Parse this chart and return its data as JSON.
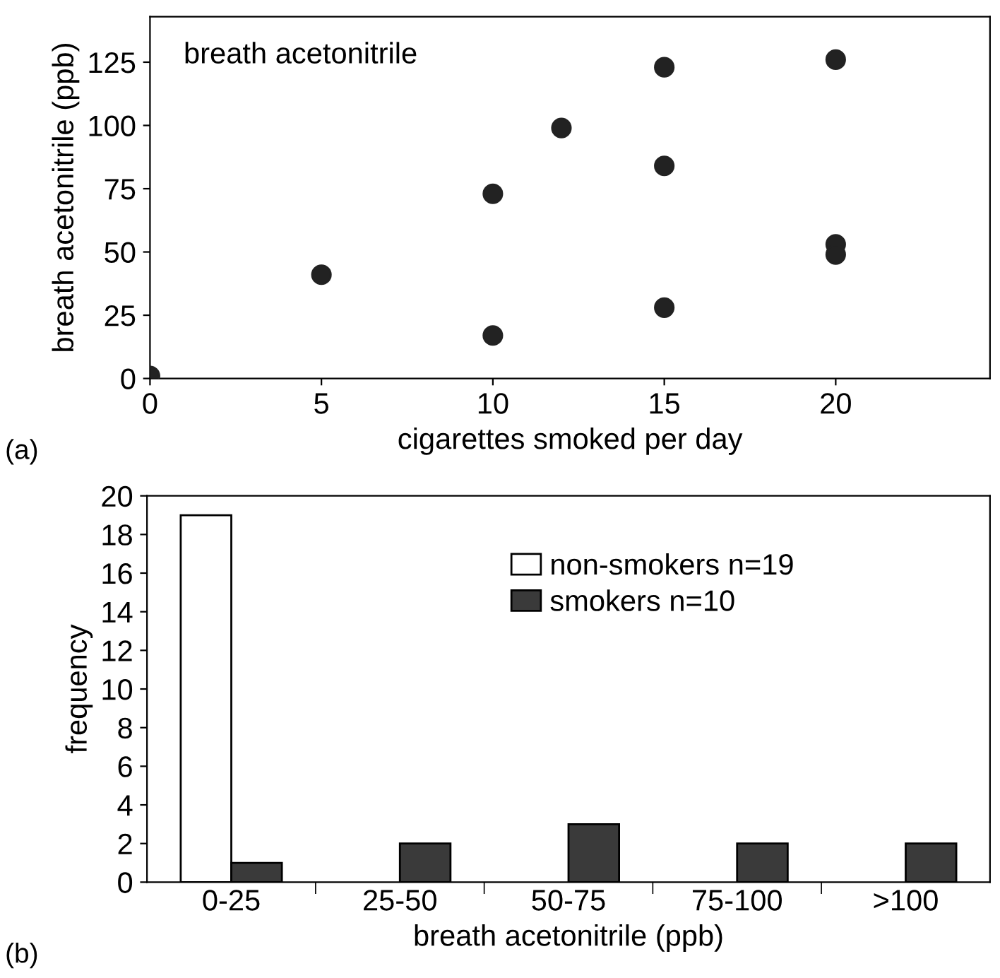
{
  "chart_data": [
    {
      "type": "scatter",
      "xlabel": "cigarettes smoked per day",
      "ylabel": "breath acetonitrile (ppb)",
      "annotations": [
        "breath acetonitrile",
        "(a)"
      ],
      "x": [
        0,
        5,
        10,
        10,
        12,
        15,
        15,
        15,
        20,
        20,
        20
      ],
      "series": [
        {
          "color": "#222222",
          "values": [
            1,
            41,
            73,
            17,
            99,
            123,
            84,
            28,
            126,
            53,
            49
          ]
        }
      ],
      "xlim": [
        0,
        24.5
      ],
      "xticks": [
        0,
        5,
        10,
        15,
        20
      ],
      "ylim": [
        0,
        143
      ],
      "yticks": [
        0,
        25,
        50,
        75,
        100,
        125
      ],
      "marker": "circle",
      "grid": false,
      "legend": false
    },
    {
      "type": "bar",
      "xlabel": "breath acetonitrile (ppb)",
      "ylabel": "frequency",
      "annotations": [
        "(b)"
      ],
      "categories": [
        "0-25",
        "25-50",
        "50-75",
        "75-100",
        ">100"
      ],
      "series": [
        {
          "name": "non-smokers n=19",
          "color": "#ffffff",
          "values": [
            19,
            null,
            null,
            null,
            null
          ]
        },
        {
          "name": "smokers n=10",
          "color": "#3a3a3a",
          "values": [
            1,
            2,
            3,
            2,
            2
          ]
        }
      ],
      "ylim": [
        0,
        20
      ],
      "yticks": [
        0,
        2,
        4,
        6,
        8,
        10,
        12,
        14,
        16,
        18,
        20
      ],
      "grid": false,
      "legend": "top"
    }
  ]
}
